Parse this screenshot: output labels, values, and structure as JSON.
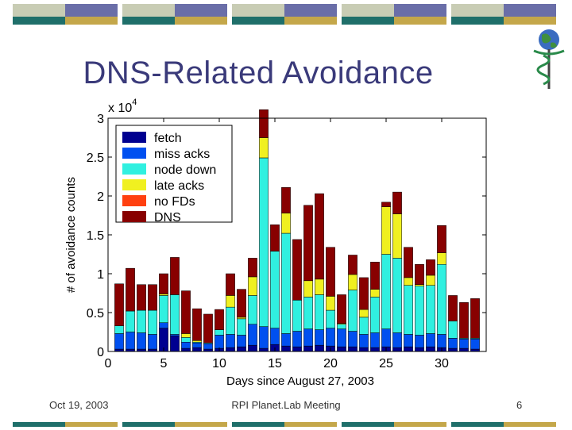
{
  "slide": {
    "title": "DNS-Related Avoidance",
    "footer_date": "Oct 19, 2003",
    "footer_center": "RPI Planet.Lab Meeting",
    "page_number": "6"
  },
  "colors": {
    "band_light": "#c8ccb4",
    "band_blue": "#6a6ea8",
    "band_teal": "#1f6f6a",
    "band_gold": "#c4a74a"
  },
  "chart_data": {
    "type": "bar",
    "stacked": true,
    "xlabel": "Days since August 27, 2003",
    "ylabel": "# of avoidance counts",
    "ylim": [
      0,
      30000
    ],
    "xlim": [
      0,
      34
    ],
    "y_exponent_label": "x 10",
    "y_exponent": "4",
    "x_ticks": [
      0,
      5,
      10,
      15,
      20,
      25,
      30
    ],
    "y_ticks": [
      0,
      0.5,
      1,
      1.5,
      2,
      2.5,
      3
    ],
    "y_tick_labels": [
      "0",
      "0.5",
      "1",
      "1.5",
      "2",
      "2.5",
      "3"
    ],
    "legend_position": "top-left",
    "x": [
      1,
      2,
      3,
      4,
      5,
      6,
      7,
      8,
      9,
      10,
      11,
      12,
      13,
      14,
      15,
      16,
      17,
      18,
      19,
      20,
      21,
      22,
      23,
      24,
      25,
      26,
      27,
      28,
      29,
      30,
      31,
      32,
      33
    ],
    "series": [
      {
        "name": "fetch",
        "color": "#000090",
        "values": [
          300,
          300,
          300,
          300,
          3000,
          2000,
          400,
          500,
          300,
          400,
          500,
          600,
          800,
          400,
          900,
          700,
          600,
          700,
          800,
          700,
          600,
          600,
          500,
          500,
          600,
          500,
          600,
          500,
          600,
          500,
          400,
          400,
          300
        ]
      },
      {
        "name": "miss acks",
        "color": "#0050f0",
        "values": [
          2000,
          2200,
          2100,
          1900,
          700,
          200,
          800,
          600,
          700,
          1700,
          1700,
          1500,
          2700,
          2800,
          2100,
          1600,
          2000,
          2200,
          2000,
          2300,
          2300,
          2000,
          1700,
          1900,
          2300,
          1900,
          1600,
          1600,
          1700,
          1700,
          1300,
          1200,
          1300
        ]
      },
      {
        "name": "node down",
        "color": "#30f0e0",
        "values": [
          1000,
          2700,
          2900,
          3100,
          3500,
          5100,
          600,
          100,
          100,
          700,
          3500,
          2100,
          3700,
          21700,
          9900,
          12900,
          4000,
          4100,
          4500,
          2300,
          600,
          5300,
          2200,
          4600,
          9600,
          9600,
          6300,
          6300,
          6200,
          9000,
          2200,
          100,
          100
        ]
      },
      {
        "name": "late acks",
        "color": "#f0f020",
        "values": [
          0,
          0,
          0,
          0,
          200,
          0,
          500,
          200,
          0,
          0,
          1500,
          200,
          2400,
          2600,
          0,
          2600,
          0,
          2100,
          2000,
          1800,
          100,
          2000,
          1000,
          1000,
          6100,
          5700,
          1000,
          200,
          1300,
          1500,
          0,
          0,
          0
        ]
      },
      {
        "name": "no FDs",
        "color": "#ff4010",
        "values": [
          0,
          0,
          0,
          0,
          0,
          0,
          0,
          0,
          0,
          0,
          0,
          0,
          0,
          0,
          0,
          0,
          0,
          0,
          0,
          0,
          0,
          0,
          0,
          0,
          0,
          0,
          0,
          0,
          0,
          0,
          0,
          0,
          0
        ]
      },
      {
        "name": "DNS",
        "color": "#880000",
        "values": [
          5400,
          5500,
          3300,
          3300,
          2600,
          4800,
          5500,
          4100,
          3700,
          2600,
          2800,
          3600,
          2400,
          3600,
          3400,
          3300,
          7800,
          9700,
          11000,
          6300,
          3700,
          2500,
          4100,
          3500,
          600,
          2800,
          3900,
          2600,
          2000,
          3500,
          3300,
          4600,
          5100
        ]
      }
    ]
  }
}
